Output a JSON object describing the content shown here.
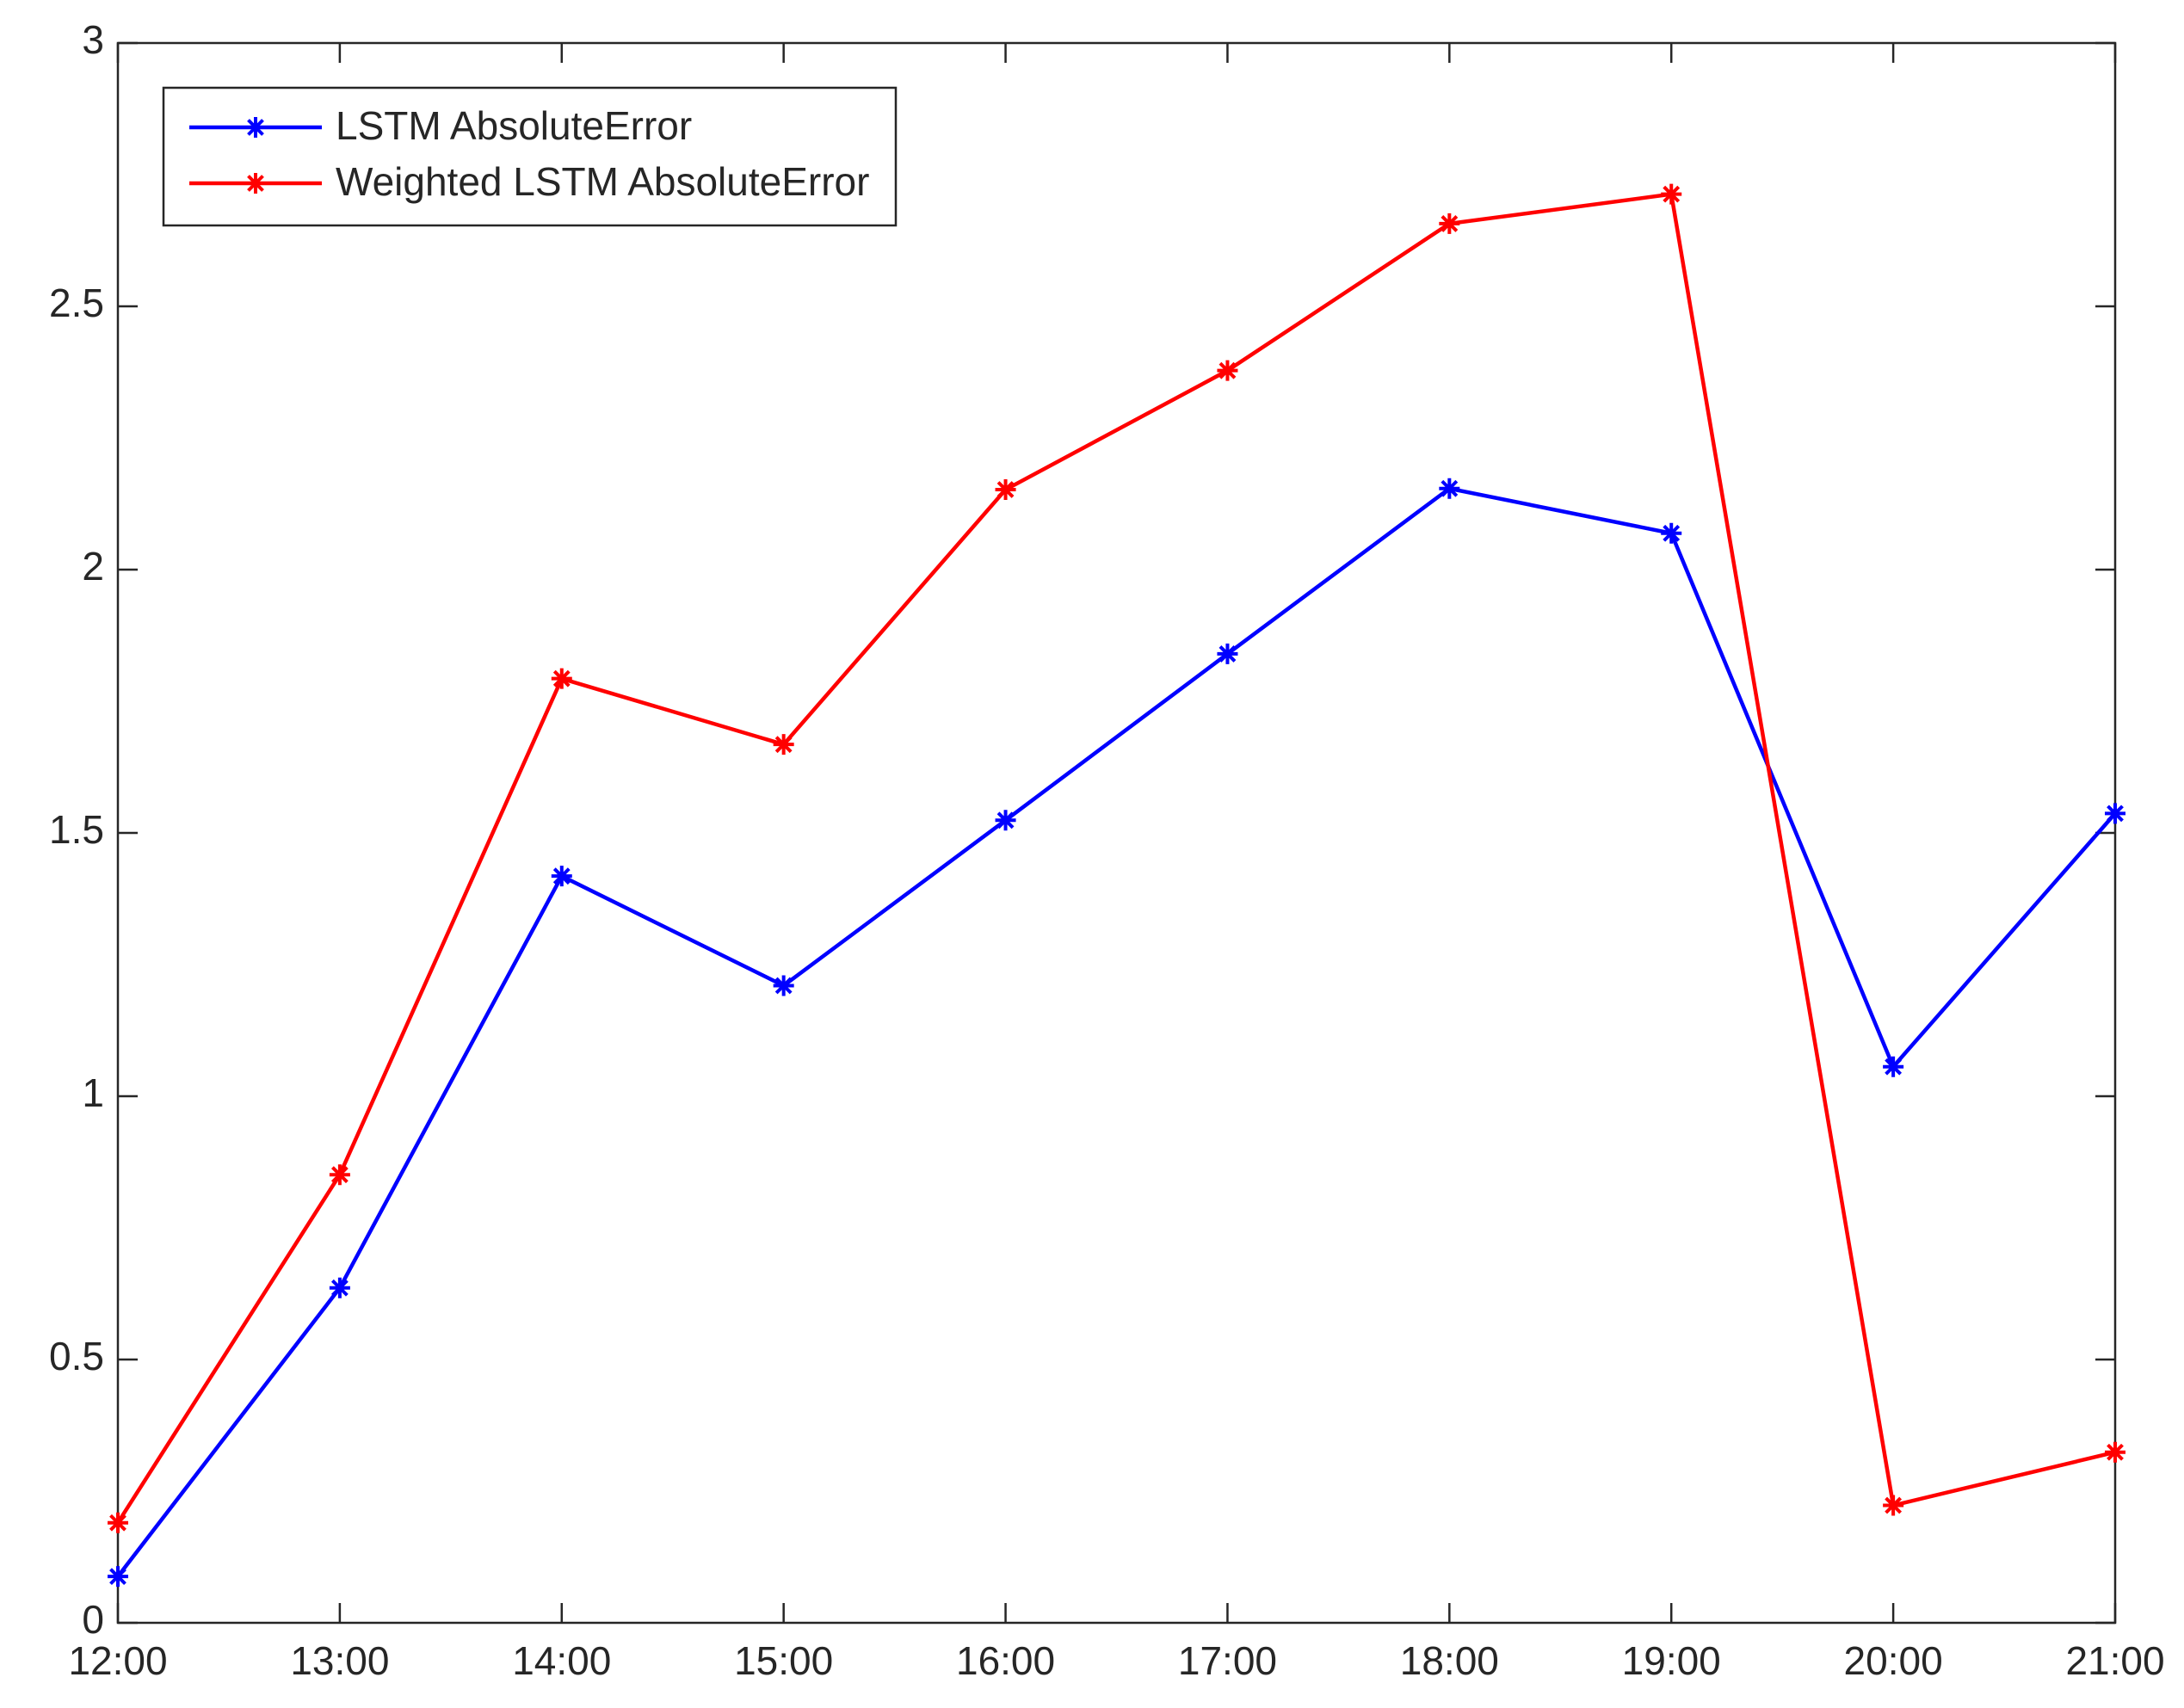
{
  "chart_data": {
    "type": "line",
    "categories": [
      "12:00",
      "13:00",
      "14:00",
      "15:00",
      "16:00",
      "17:00",
      "18:00",
      "19:00",
      "20:00",
      "21:00"
    ],
    "series": [
      {
        "name": "LSTM AbsoluteError",
        "color": "#0000ff",
        "values": [
          0.088,
          0.636,
          1.418,
          1.21,
          1.524,
          1.84,
          2.154,
          2.069,
          1.056,
          1.537
        ]
      },
      {
        "name": "Weighted LSTM AbsoluteError",
        "color": "#ff0000",
        "values": [
          0.19,
          0.851,
          1.793,
          1.668,
          2.152,
          2.378,
          2.657,
          2.713,
          0.223,
          0.324
        ]
      }
    ],
    "ylim": [
      0,
      3
    ],
    "yticks": [
      0,
      0.5,
      1,
      1.5,
      2,
      2.5,
      3
    ],
    "grid": false,
    "legend": "upper left"
  }
}
